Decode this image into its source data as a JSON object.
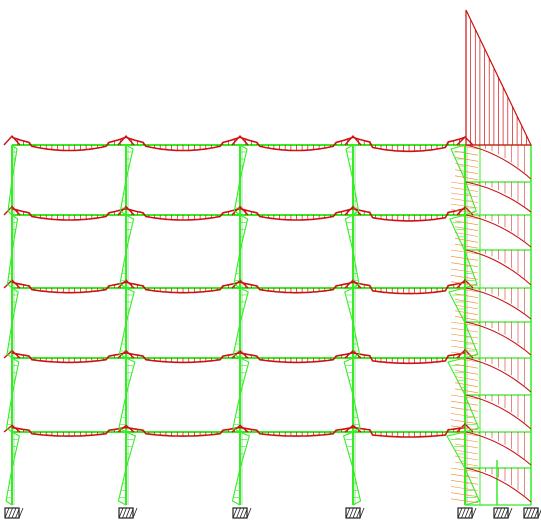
{
  "diagram": {
    "type": "structural-frame-moment-diagram",
    "colors": {
      "background": "#ffffff",
      "frame": "#33ee22",
      "frame_dark": "#118811",
      "moment": "#cc1111",
      "moment_axial": "#ee8822",
      "support_fill": "#333333",
      "support_hatch": "#ffffff"
    },
    "frame": {
      "floors": 5,
      "main_bays": 4,
      "annex_bays": 2,
      "main_supports": 5,
      "annex_supports": 2
    },
    "icons": {
      "support": "fixed-support-icon"
    }
  }
}
